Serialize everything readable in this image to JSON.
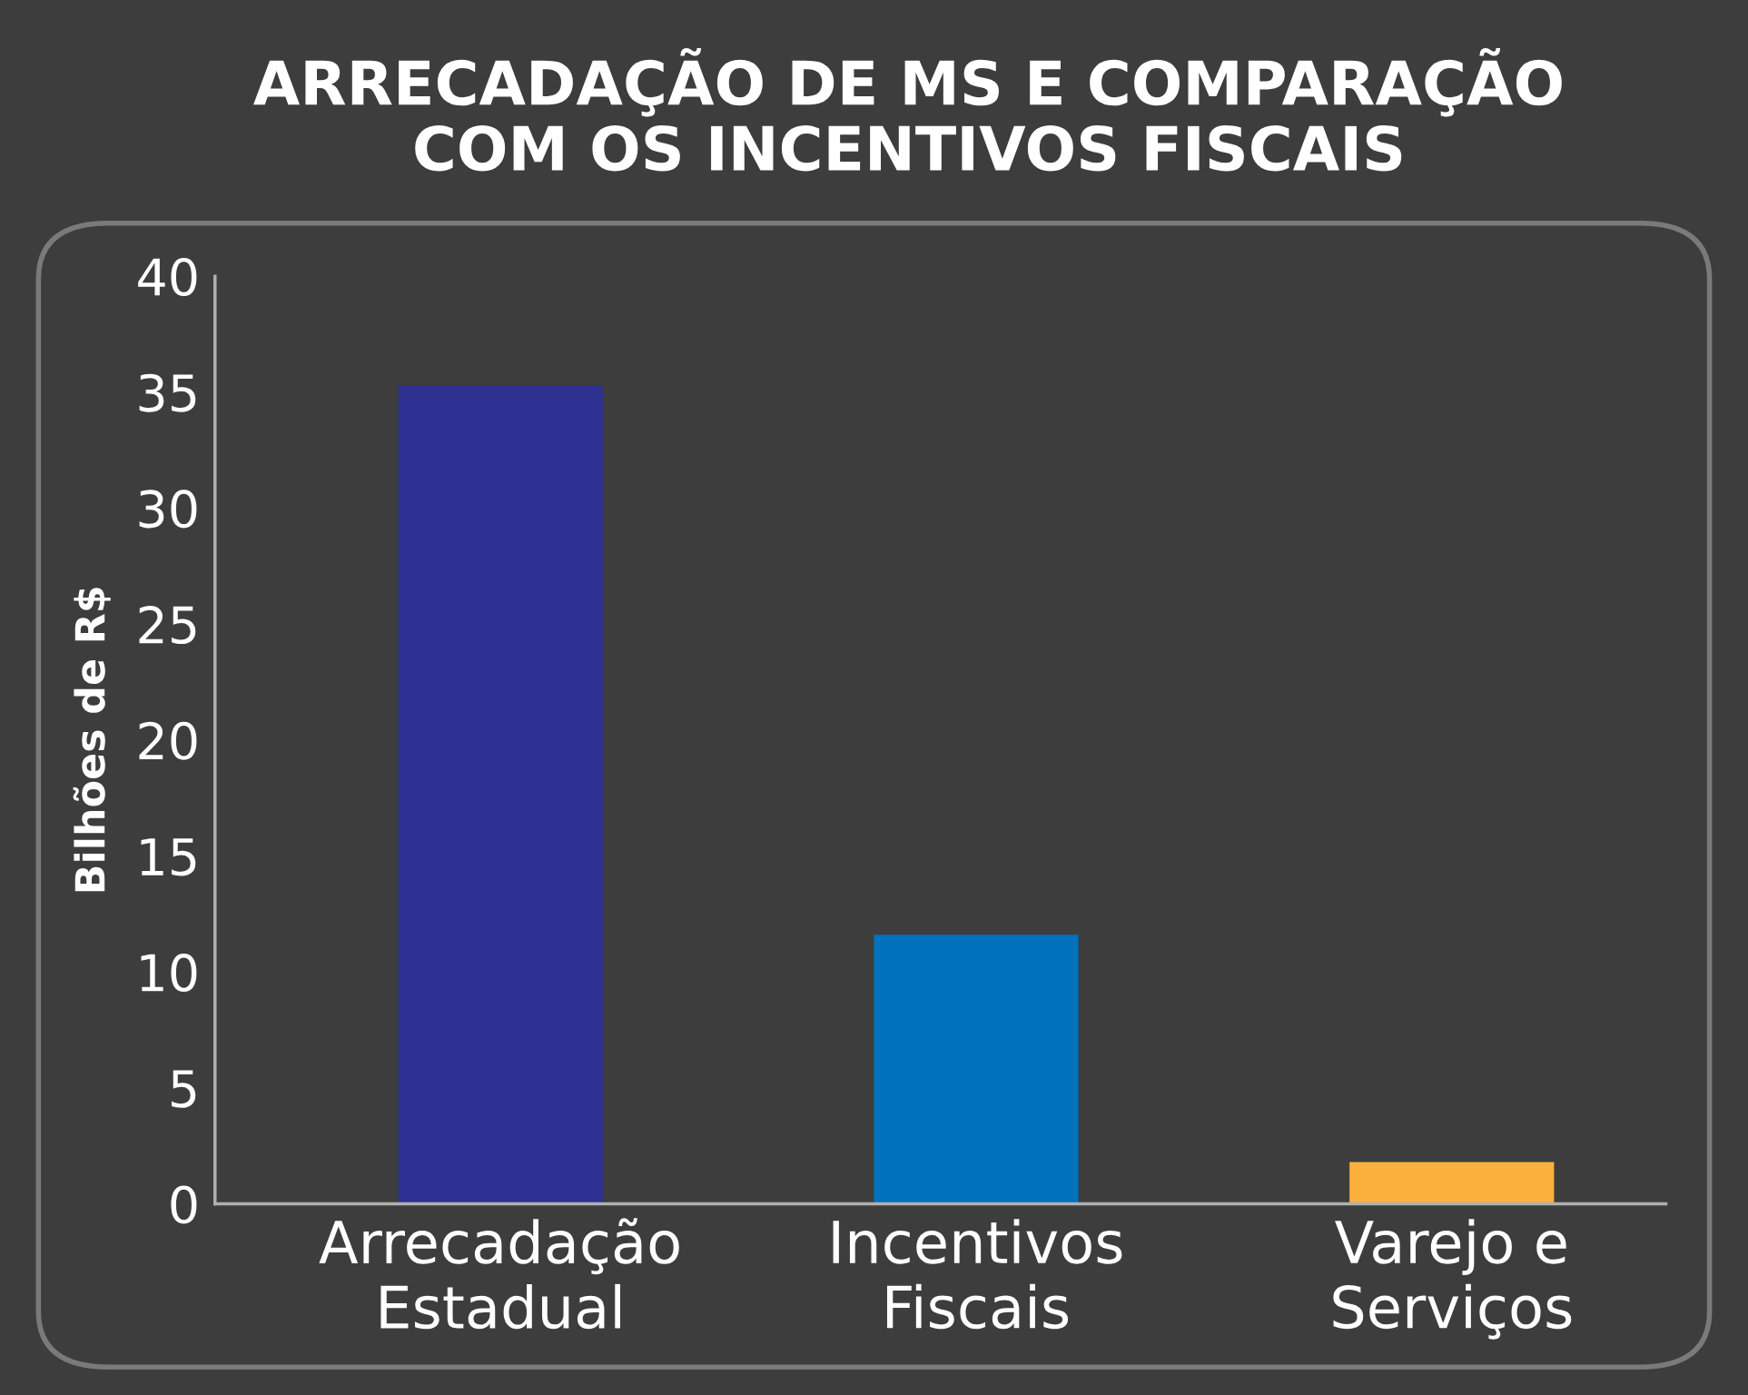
{
  "chart_data": {
    "type": "bar",
    "title": "ARRECADAÇÃO DE MS E COMPARAÇÃO\nCOM OS INCENTIVOS FISCAIS",
    "ylabel": "Bilhões de R$",
    "categories": [
      "Arrecadação\nEstadual",
      "Incentivos\nFiscais",
      "Varejo e\nServiços"
    ],
    "values": [
      35.3,
      11.6,
      1.8
    ],
    "colors": [
      "#2e3192",
      "#0071bc",
      "#fbb03b"
    ],
    "ylim": [
      0,
      40
    ],
    "yticks": [
      0,
      5,
      10,
      15,
      20,
      25,
      30,
      35,
      40
    ],
    "grid": false
  }
}
